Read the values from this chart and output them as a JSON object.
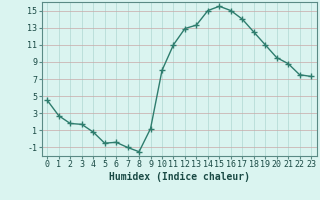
{
  "x": [
    0,
    1,
    2,
    3,
    4,
    5,
    6,
    7,
    8,
    9,
    10,
    11,
    12,
    13,
    14,
    15,
    16,
    17,
    18,
    19,
    20,
    21,
    22,
    23
  ],
  "y": [
    4.5,
    2.7,
    1.8,
    1.7,
    0.8,
    -0.5,
    -0.4,
    -1.0,
    -1.5,
    1.2,
    8.0,
    11.0,
    12.9,
    13.3,
    15.0,
    15.5,
    15.0,
    14.0,
    12.5,
    11.0,
    9.5,
    8.8,
    7.5,
    7.3
  ],
  "line_color": "#2e7d6e",
  "marker": "+",
  "marker_size": 4,
  "marker_linewidth": 1.0,
  "line_width": 1.0,
  "xlabel": "Humidex (Indice chaleur)",
  "bg_color": "#daf4f0",
  "grid_color_v": "#b0d8d2",
  "grid_color_h": "#c8a8a8",
  "ylim": [
    -2,
    16
  ],
  "xlim": [
    -0.5,
    23.5
  ],
  "yticks": [
    -1,
    1,
    3,
    5,
    7,
    9,
    11,
    13,
    15
  ],
  "xticks": [
    0,
    1,
    2,
    3,
    4,
    5,
    6,
    7,
    8,
    9,
    10,
    11,
    12,
    13,
    14,
    15,
    16,
    17,
    18,
    19,
    20,
    21,
    22,
    23
  ],
  "xlabel_fontsize": 7,
  "tick_fontsize": 6,
  "spine_color": "#5a8a85"
}
